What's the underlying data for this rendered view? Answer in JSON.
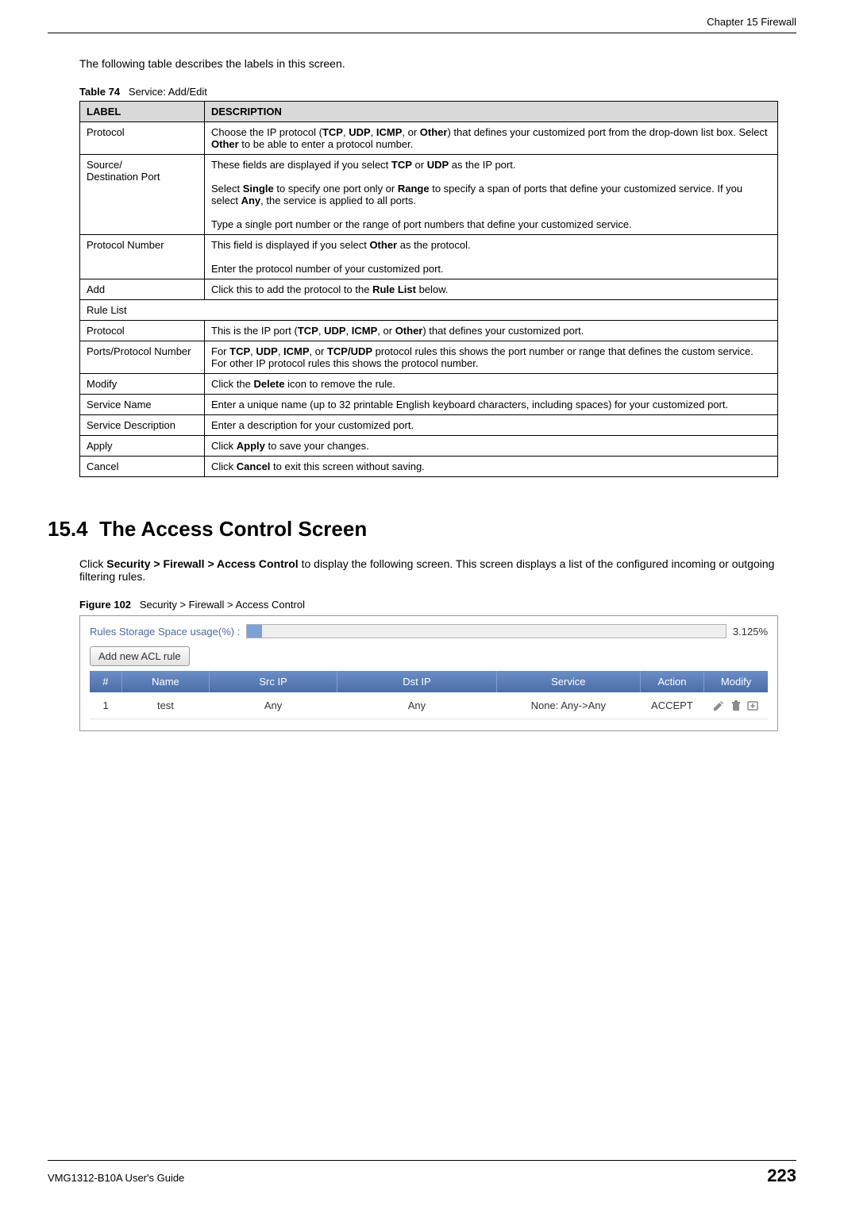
{
  "header": {
    "chapter": "Chapter 15 Firewall"
  },
  "intro": "The following table describes the labels in this screen.",
  "table74": {
    "caption_prefix": "Table 74",
    "caption_rest": "Service: Add/Edit",
    "head": {
      "label": "LABEL",
      "desc": "DESCRIPTION"
    },
    "rows": {
      "r0": {
        "label": "Protocol",
        "desc_html": "Choose the IP protocol (<b>TCP</b>, <b>UDP</b>, <b>ICMP</b>, or <b>Other</b>) that defines your customized port from the drop-down list box. Select <b>Other</b> to be able to enter a protocol number."
      },
      "r1": {
        "label": "Source/\nDestination Port",
        "desc_html": "These fields are displayed if you select <b>TCP</b> or <b>UDP</b> as the IP port.<br><br>Select <b>Single</b> to specify one port only or <b>Range</b> to specify a span of ports that define your customized service. If you select <b>Any</b>, the service is applied to all ports.<br><br>Type a single port number or the range of port numbers that define your customized service."
      },
      "r2": {
        "label": "Protocol Number",
        "desc_html": "This field is displayed if you select <b>Other</b> as the protocol.<br><br>Enter the protocol number of your customized port."
      },
      "r3": {
        "label": "Add",
        "desc_html": "Click this to add the protocol to the <b>Rule List</b> below."
      },
      "r4": {
        "label": "Rule List",
        "desc_html": ""
      },
      "r5": {
        "label": "Protocol",
        "desc_html": "This is the IP port (<b>TCP</b>, <b>UDP</b>, <b>ICMP</b>, or <b>Other</b>) that defines your customized port."
      },
      "r6": {
        "label": "Ports/Protocol Number",
        "desc_html": "For <b>TCP</b>, <b>UDP</b>, <b>ICMP</b>, or <b>TCP/UDP</b> protocol rules this shows the port number or range that defines the custom service. For other IP protocol rules this shows the protocol number."
      },
      "r7": {
        "label": "Modify",
        "desc_html": "Click the <b>Delete</b> icon to remove the rule."
      },
      "r8": {
        "label": "Service Name",
        "desc_html": "Enter a unique name (up to 32 printable English keyboard characters, including spaces) for your customized port."
      },
      "r9": {
        "label": "Service Description",
        "desc_html": "Enter a description for your customized port."
      },
      "r10": {
        "label": "Apply",
        "desc_html": "Click <b>Apply</b> to save your changes."
      },
      "r11": {
        "label": "Cancel",
        "desc_html": "Click <b>Cancel</b> to exit this screen without saving."
      }
    }
  },
  "section": {
    "number": "15.4",
    "title": "The Access Control Screen",
    "body_html": "Click <b>Security > Firewall > Access Control</b> to display the following screen. This screen displays a list of the configured incoming or outgoing filtering rules."
  },
  "figure102": {
    "caption_prefix": "Figure 102",
    "caption_rest": "Security > Firewall > Access Control",
    "usage_label": "Rules Storage Space usage(%) :",
    "usage_percent_text": "3.125%",
    "usage_fill_pct": 3.125,
    "add_button": "Add new ACL rule",
    "columns": {
      "c0": "#",
      "c1": "Name",
      "c2": "Src IP",
      "c3": "Dst IP",
      "c4": "Service",
      "c5": "Action",
      "c6": "Modify"
    },
    "col_widths": {
      "c0": 40,
      "c1": 110,
      "c2": 160,
      "c3": 200,
      "c4": 180,
      "c5": 80,
      "c6": 80
    },
    "header_bg_gradient": [
      "#6c8ec6",
      "#4a6da8"
    ],
    "header_fg": "#ffffff",
    "row0": {
      "num": "1",
      "name": "test",
      "src": "Any",
      "dst": "Any",
      "service": "None: Any->Any",
      "action": "ACCEPT"
    },
    "icons": {
      "edit": "edit-icon",
      "delete": "delete-icon",
      "move": "move-icon"
    }
  },
  "footer": {
    "guide": "VMG1312-B10A User's Guide",
    "page": "223"
  },
  "colors": {
    "table_header_bg": "#d9d9d9",
    "border": "#000000",
    "link_blue": "#4b6aa0",
    "acl_header_top": "#6c8ec6",
    "acl_header_bottom": "#4a6da8",
    "bar_border": "#b0b0b0",
    "bar_bg": "#efefef",
    "bar_fill": "#7da0d8"
  }
}
